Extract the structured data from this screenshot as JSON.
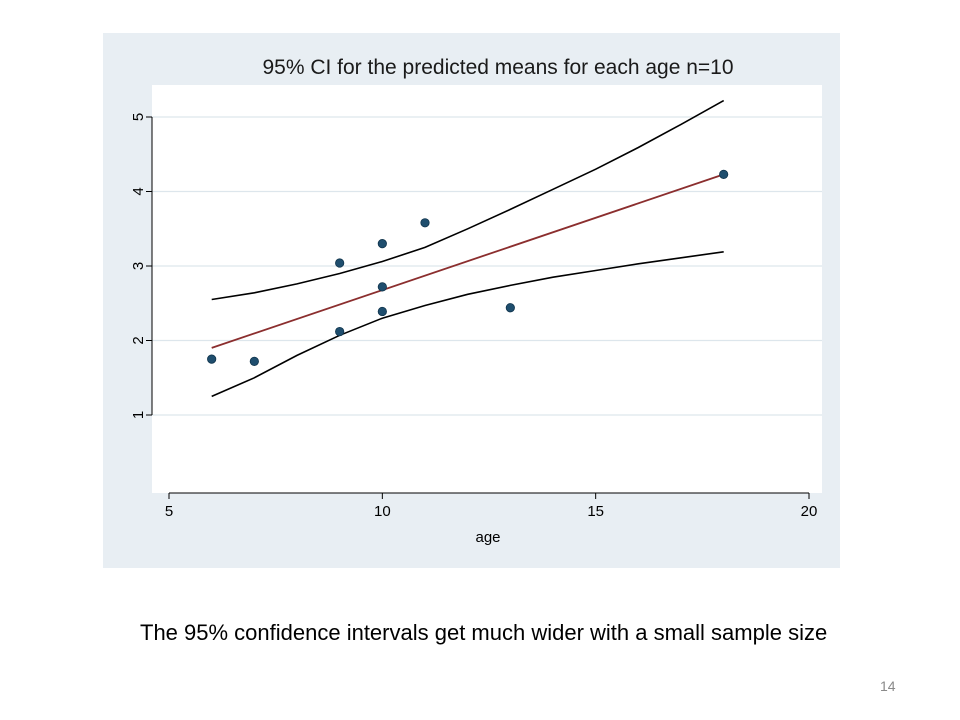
{
  "slide": {
    "caption": "The 95% confidence intervals get much wider with a small sample size",
    "number": "14"
  },
  "colors": {
    "panel_bg": "#e8eef3",
    "plot_bg": "#ffffff",
    "gridline": "#dde6ec",
    "point": "#1f4e6e",
    "fit_line": "#8b2e2e",
    "ci_line": "#000000"
  },
  "chart_data": {
    "type": "scatter",
    "title": "95% CI for the predicted means for each age n=10",
    "xlabel": "age",
    "ylabel": "",
    "xlim": [
      5,
      20
    ],
    "ylim": [
      1,
      5
    ],
    "xticks": [
      5,
      10,
      15,
      20
    ],
    "yticks": [
      1,
      2,
      3,
      4,
      5
    ],
    "grid": true,
    "legend": "none",
    "points": [
      {
        "x": 6,
        "y": 1.75
      },
      {
        "x": 7,
        "y": 1.72
      },
      {
        "x": 9,
        "y": 3.04
      },
      {
        "x": 9,
        "y": 2.12
      },
      {
        "x": 10,
        "y": 3.3
      },
      {
        "x": 10,
        "y": 2.72
      },
      {
        "x": 10,
        "y": 2.39
      },
      {
        "x": 11,
        "y": 3.58
      },
      {
        "x": 13,
        "y": 2.44
      },
      {
        "x": 18,
        "y": 4.23
      }
    ],
    "fit_line": [
      {
        "x": 6,
        "y": 1.9
      },
      {
        "x": 18,
        "y": 4.23
      }
    ],
    "ci_upper": [
      {
        "x": 6,
        "y": 2.55
      },
      {
        "x": 7,
        "y": 2.64
      },
      {
        "x": 8,
        "y": 2.76
      },
      {
        "x": 9,
        "y": 2.9
      },
      {
        "x": 10,
        "y": 3.06
      },
      {
        "x": 11,
        "y": 3.25
      },
      {
        "x": 12,
        "y": 3.5
      },
      {
        "x": 13,
        "y": 3.76
      },
      {
        "x": 14,
        "y": 4.03
      },
      {
        "x": 15,
        "y": 4.3
      },
      {
        "x": 16,
        "y": 4.59
      },
      {
        "x": 17,
        "y": 4.9
      },
      {
        "x": 18,
        "y": 5.22
      }
    ],
    "ci_lower": [
      {
        "x": 6,
        "y": 1.25
      },
      {
        "x": 7,
        "y": 1.5
      },
      {
        "x": 8,
        "y": 1.8
      },
      {
        "x": 9,
        "y": 2.07
      },
      {
        "x": 10,
        "y": 2.3
      },
      {
        "x": 11,
        "y": 2.47
      },
      {
        "x": 12,
        "y": 2.62
      },
      {
        "x": 13,
        "y": 2.74
      },
      {
        "x": 14,
        "y": 2.85
      },
      {
        "x": 15,
        "y": 2.94
      },
      {
        "x": 16,
        "y": 3.03
      },
      {
        "x": 17,
        "y": 3.11
      },
      {
        "x": 18,
        "y": 3.19
      }
    ]
  }
}
